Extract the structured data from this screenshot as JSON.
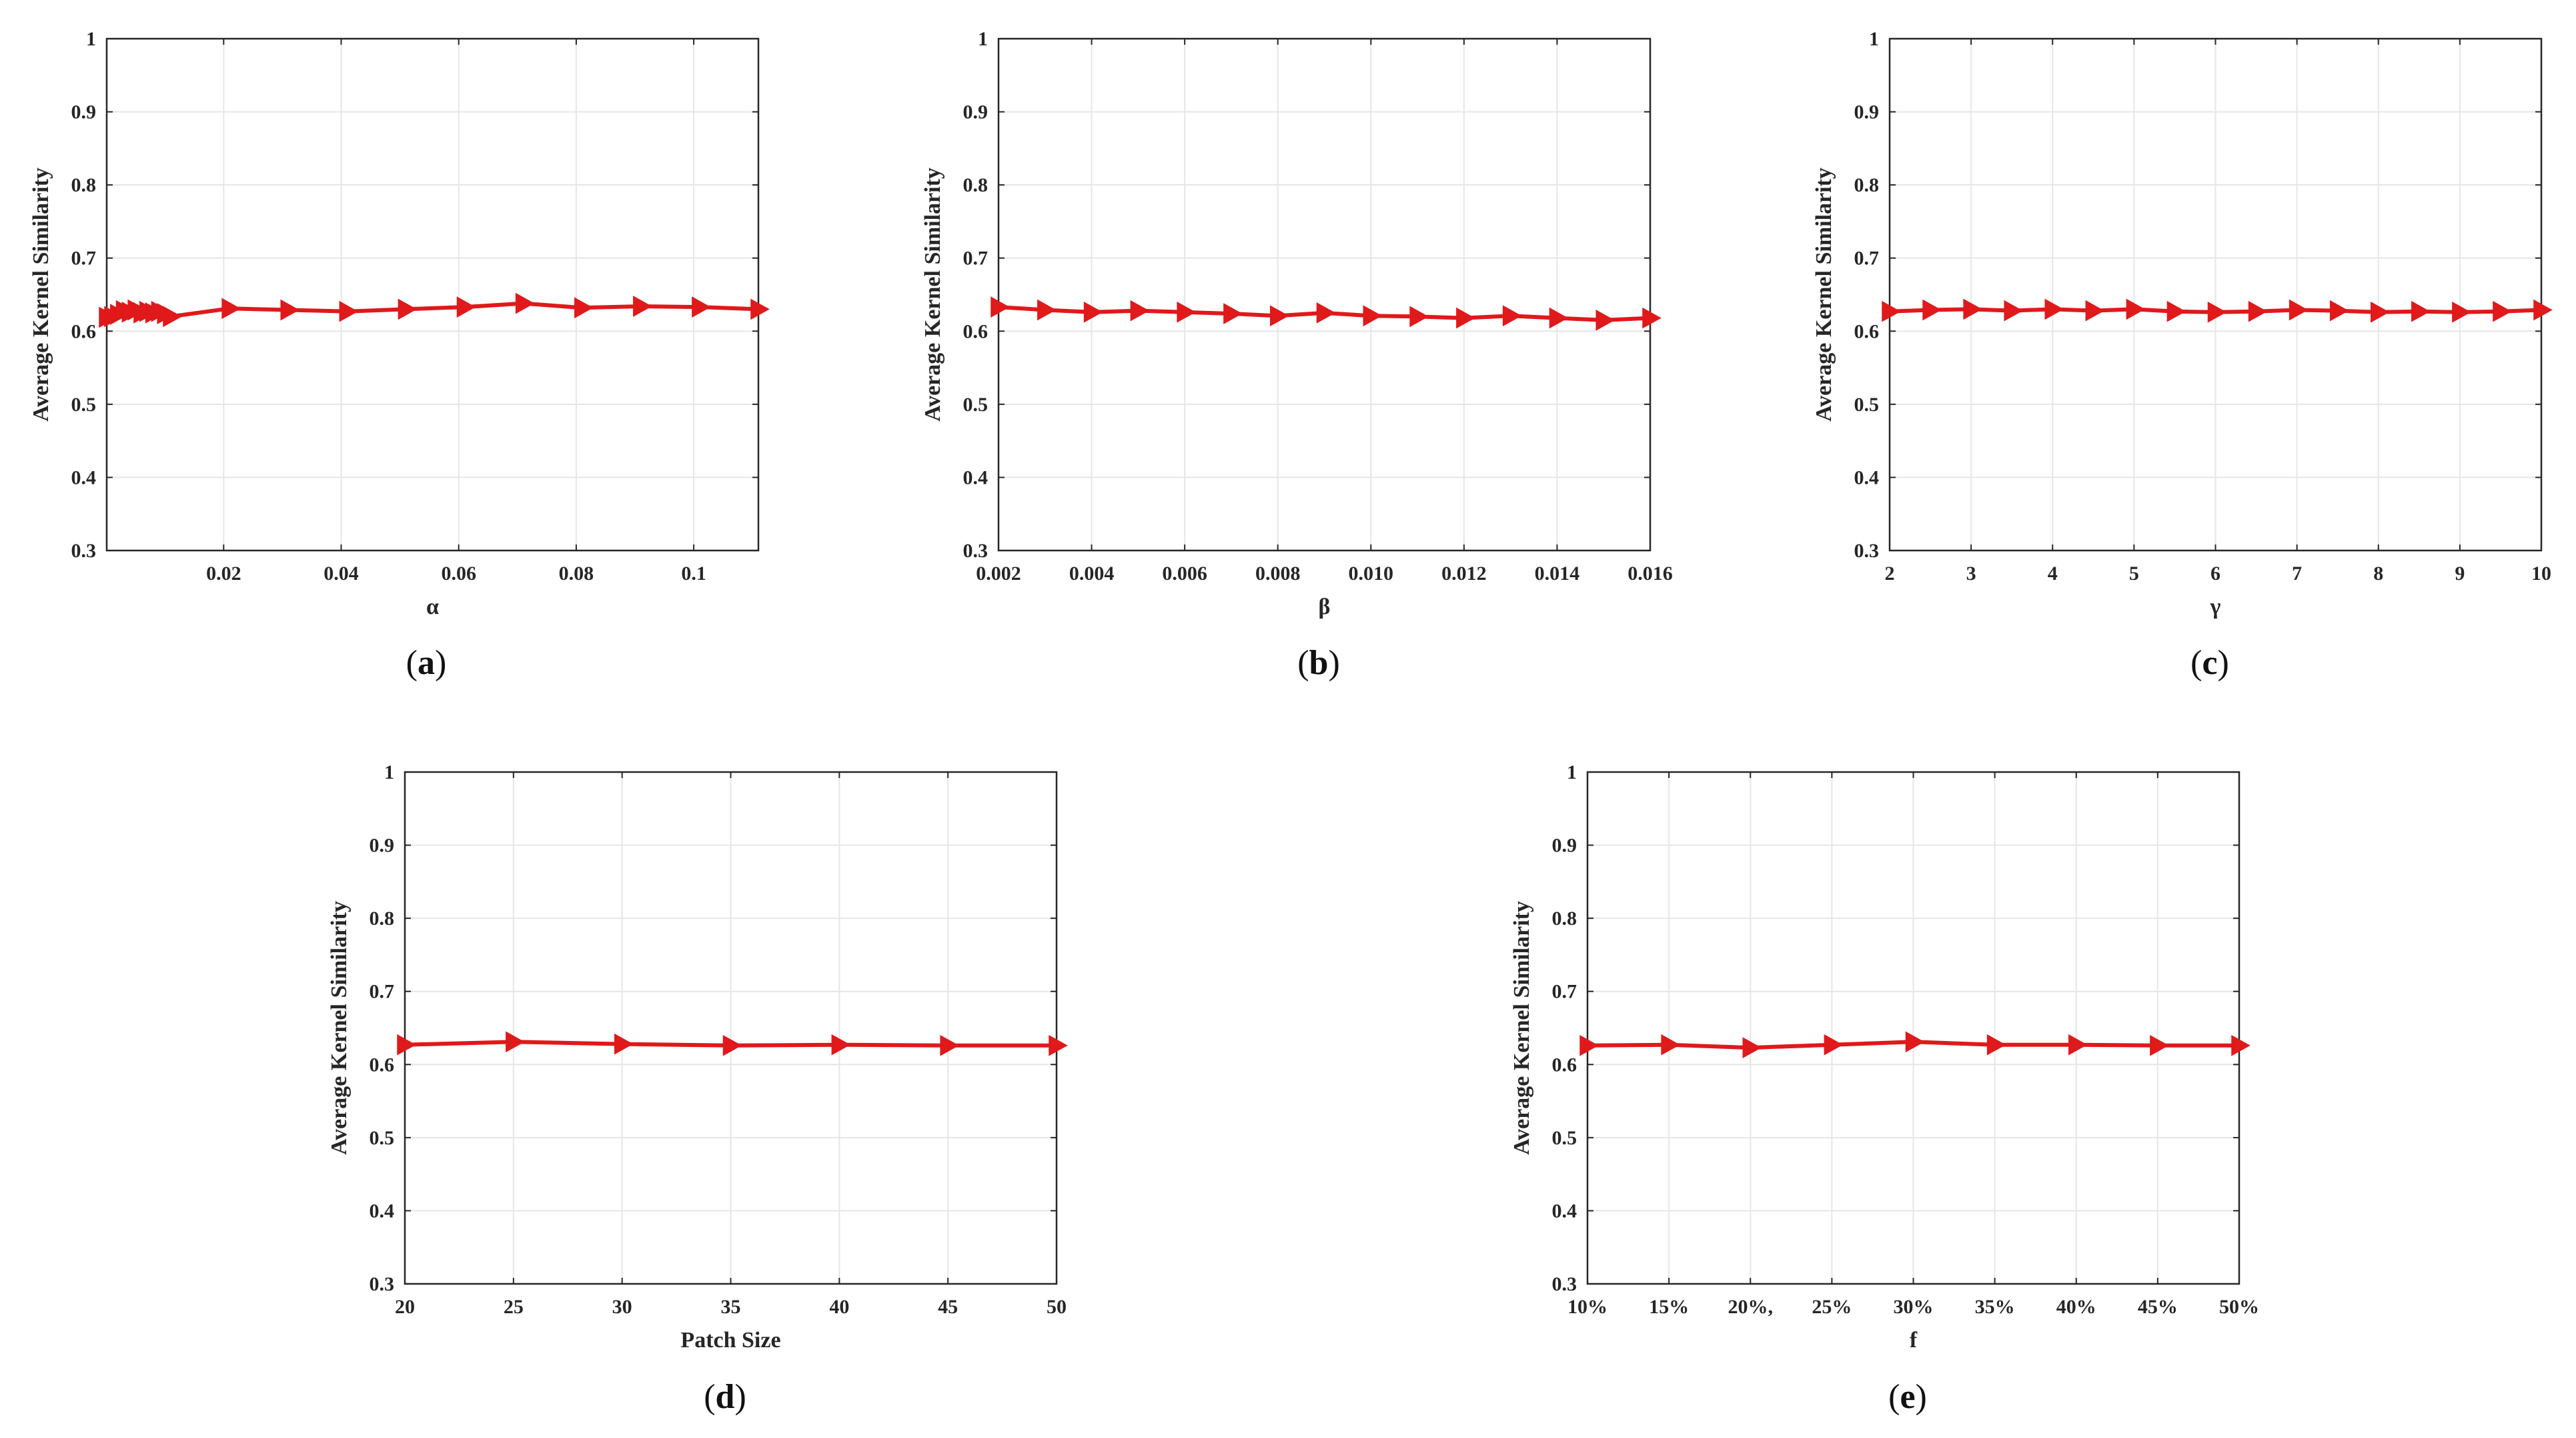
{
  "figure": {
    "colors": {
      "series": "#e0191b",
      "grid": "#e6e6e6",
      "axis": "#262626"
    }
  },
  "chart_data": [
    {
      "type": "line",
      "panel": "a",
      "xlabel": "α",
      "ylabel": "Average Kernel Similarity",
      "xlim": [
        0.0001,
        0.111
      ],
      "ylim": [
        0.3,
        1.0
      ],
      "xticks": [
        0.02,
        0.04,
        0.06,
        0.08,
        0.1
      ],
      "xtick_labels": [
        "0.02",
        "0.04",
        "0.06",
        "0.08",
        "0.1"
      ],
      "yticks": [
        0.3,
        0.4,
        0.5,
        0.6,
        0.7,
        0.8,
        0.9,
        1.0
      ],
      "ytick_labels": [
        "0.3",
        "0.4",
        "0.5",
        "0.6",
        "0.7",
        "0.8",
        "0.9",
        "1"
      ],
      "grid": true,
      "marker": "triangle-right",
      "x": [
        0.0001,
        0.001,
        0.002,
        0.003,
        0.004,
        0.005,
        0.006,
        0.007,
        0.008,
        0.009,
        0.01,
        0.011,
        0.021,
        0.031,
        0.041,
        0.051,
        0.061,
        0.071,
        0.081,
        0.091,
        0.101,
        0.111
      ],
      "y": [
        0.619,
        0.62,
        0.623,
        0.628,
        0.626,
        0.629,
        0.625,
        0.627,
        0.625,
        0.627,
        0.624,
        0.62,
        0.631,
        0.629,
        0.627,
        0.63,
        0.633,
        0.638,
        0.632,
        0.634,
        0.633,
        0.63
      ]
    },
    {
      "type": "line",
      "panel": "b",
      "xlabel": "β",
      "ylabel": "Average Kernel Similarity",
      "xlim": [
        0.002,
        0.016
      ],
      "ylim": [
        0.3,
        1.0
      ],
      "xticks": [
        0.002,
        0.004,
        0.006,
        0.008,
        0.01,
        0.012,
        0.014,
        0.016
      ],
      "xtick_labels": [
        "0.002",
        "0.004",
        "0.006",
        "0.008",
        "0.010",
        "0.012",
        "0.014",
        "0.016"
      ],
      "yticks": [
        0.3,
        0.4,
        0.5,
        0.6,
        0.7,
        0.8,
        0.9,
        1.0
      ],
      "ytick_labels": [
        "0.3",
        "0.4",
        "0.5",
        "0.6",
        "0.7",
        "0.8",
        "0.9",
        "1"
      ],
      "grid": true,
      "marker": "triangle-right",
      "x": [
        0.002,
        0.003,
        0.004,
        0.005,
        0.006,
        0.007,
        0.008,
        0.009,
        0.01,
        0.011,
        0.012,
        0.013,
        0.014,
        0.015,
        0.016
      ],
      "y": [
        0.633,
        0.629,
        0.626,
        0.628,
        0.626,
        0.624,
        0.621,
        0.625,
        0.621,
        0.62,
        0.618,
        0.621,
        0.618,
        0.615,
        0.618
      ]
    },
    {
      "type": "line",
      "panel": "c",
      "xlabel": "γ",
      "ylabel": "Average Kernel Similarity",
      "xlim": [
        2,
        10
      ],
      "ylim": [
        0.3,
        1.0
      ],
      "xticks": [
        2,
        3,
        4,
        5,
        6,
        7,
        8,
        9,
        10
      ],
      "xtick_labels": [
        "2",
        "3",
        "4",
        "5",
        "6",
        "7",
        "8",
        "9",
        "10"
      ],
      "yticks": [
        0.3,
        0.4,
        0.5,
        0.6,
        0.7,
        0.8,
        0.9,
        1.0
      ],
      "ytick_labels": [
        "0.3",
        "0.4",
        "0.5",
        "0.6",
        "0.7",
        "0.8",
        "0.9",
        "1"
      ],
      "grid": true,
      "marker": "triangle-right",
      "x": [
        2,
        2.5,
        3,
        3.5,
        4,
        4.5,
        5,
        5.5,
        6,
        6.5,
        7,
        7.5,
        8,
        8.5,
        9,
        9.5,
        10
      ],
      "y": [
        0.627,
        0.629,
        0.63,
        0.628,
        0.63,
        0.628,
        0.63,
        0.627,
        0.626,
        0.627,
        0.629,
        0.628,
        0.626,
        0.627,
        0.626,
        0.627,
        0.629
      ]
    },
    {
      "type": "line",
      "panel": "d",
      "xlabel": "Patch Size",
      "ylabel": "Average Kernel Similarity",
      "xlim": [
        20,
        50
      ],
      "ylim": [
        0.3,
        1.0
      ],
      "xticks": [
        20,
        25,
        30,
        35,
        40,
        45,
        50
      ],
      "xtick_labels": [
        "20",
        "25",
        "30",
        "35",
        "40",
        "45",
        "50"
      ],
      "yticks": [
        0.3,
        0.4,
        0.5,
        0.6,
        0.7,
        0.8,
        0.9,
        1.0
      ],
      "ytick_labels": [
        "0.3",
        "0.4",
        "0.5",
        "0.6",
        "0.7",
        "0.8",
        "0.9",
        "1"
      ],
      "grid": true,
      "marker": "triangle-right",
      "x": [
        20,
        25,
        30,
        35,
        40,
        45,
        50
      ],
      "y": [
        0.627,
        0.631,
        0.628,
        0.626,
        0.627,
        0.626,
        0.626
      ]
    },
    {
      "type": "line",
      "panel": "e",
      "xlabel": "f",
      "ylabel": "Average Kernel Similarity",
      "xlim": [
        10,
        50
      ],
      "ylim": [
        0.3,
        1.0
      ],
      "xticks": [
        10,
        15,
        20,
        25,
        30,
        35,
        40,
        45,
        50
      ],
      "xtick_labels": [
        "10%",
        "15%",
        "20%,",
        "25%",
        "30%",
        "35%",
        "40%",
        "45%",
        "50%"
      ],
      "yticks": [
        0.3,
        0.4,
        0.5,
        0.6,
        0.7,
        0.8,
        0.9,
        1.0
      ],
      "ytick_labels": [
        "0.3",
        "0.4",
        "0.5",
        "0.6",
        "0.7",
        "0.8",
        "0.9",
        "1"
      ],
      "grid": true,
      "marker": "triangle-right",
      "x": [
        10,
        15,
        20,
        25,
        30,
        35,
        40,
        45,
        50
      ],
      "y": [
        0.626,
        0.627,
        0.623,
        0.627,
        0.631,
        0.627,
        0.627,
        0.626,
        0.626
      ]
    }
  ]
}
